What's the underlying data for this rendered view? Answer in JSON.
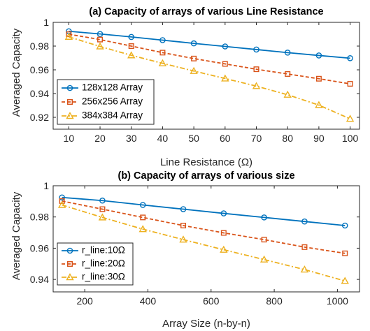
{
  "colors": {
    "series1": "#0072BD",
    "series2": "#D95319",
    "series3": "#EDB120",
    "axis": "#262626"
  },
  "chart_data": [
    {
      "type": "line",
      "title": "(a) Capacity of arrays of various Line Resistance",
      "xlabel": "Line Resistance (Ω)",
      "ylabel": "Averaged Capacity",
      "x": [
        10,
        20,
        30,
        40,
        50,
        60,
        70,
        80,
        90,
        100
      ],
      "xlim": [
        5,
        103
      ],
      "ylim": [
        0.91,
        1.0
      ],
      "xticks": [
        10,
        20,
        30,
        40,
        50,
        60,
        70,
        80,
        90,
        100
      ],
      "yticks": [
        0.92,
        0.94,
        0.96,
        0.98,
        1.0
      ],
      "ytick_labels": [
        "0.92",
        "0.94",
        "0.96",
        "0.98",
        "1"
      ],
      "grid": false,
      "legend_position": "bottom-left",
      "series": [
        {
          "name": "128x128 Array",
          "values": [
            0.9925,
            0.9902,
            0.9877,
            0.985,
            0.9823,
            0.9797,
            0.9771,
            0.9745,
            0.9721,
            0.9698
          ],
          "marker": "circle",
          "line": "solid",
          "color_key": "series1"
        },
        {
          "name": "256x256 Array",
          "values": [
            0.99,
            0.9855,
            0.98,
            0.9745,
            0.9695,
            0.965,
            0.9605,
            0.9565,
            0.9525,
            0.9482
          ],
          "marker": "square",
          "line": "dashed",
          "color_key": "series2"
        },
        {
          "name": "384x384 Array",
          "values": [
            0.9878,
            0.9797,
            0.9722,
            0.9655,
            0.959,
            0.9527,
            0.9463,
            0.939,
            0.9303,
            0.9187
          ],
          "marker": "triangle",
          "line": "dashdot",
          "color_key": "series3"
        }
      ]
    },
    {
      "type": "line",
      "title": "(b) Capacity of arrays of various size",
      "xlabel": "Array Size (n-by-n)",
      "ylabel": "Averaged Capacity",
      "x": [
        128,
        256,
        384,
        512,
        640,
        768,
        896,
        1024
      ],
      "xlim": [
        100,
        1070
      ],
      "ylim": [
        0.932,
        1.0
      ],
      "xticks": [
        200,
        400,
        600,
        800,
        1000
      ],
      "yticks": [
        0.94,
        0.96,
        0.98,
        1.0
      ],
      "ytick_labels": [
        "0.94",
        "0.96",
        "0.98",
        "1"
      ],
      "grid": false,
      "legend_position": "bottom-left",
      "series": [
        {
          "name": "r_line:10Ω",
          "values": [
            0.9925,
            0.9905,
            0.9877,
            0.985,
            0.9823,
            0.9797,
            0.9771,
            0.9745
          ],
          "marker": "circle",
          "line": "solid",
          "color_key": "series1"
        },
        {
          "name": "r_line:20Ω",
          "values": [
            0.9902,
            0.985,
            0.9797,
            0.9745,
            0.9698,
            0.9655,
            0.9607,
            0.9567
          ],
          "marker": "square",
          "line": "dashed",
          "color_key": "series2"
        },
        {
          "name": "r_line:30Ω",
          "values": [
            0.9877,
            0.9797,
            0.9722,
            0.9655,
            0.959,
            0.9527,
            0.9463,
            0.939
          ],
          "marker": "triangle",
          "line": "dashdot",
          "color_key": "series3"
        }
      ]
    }
  ]
}
